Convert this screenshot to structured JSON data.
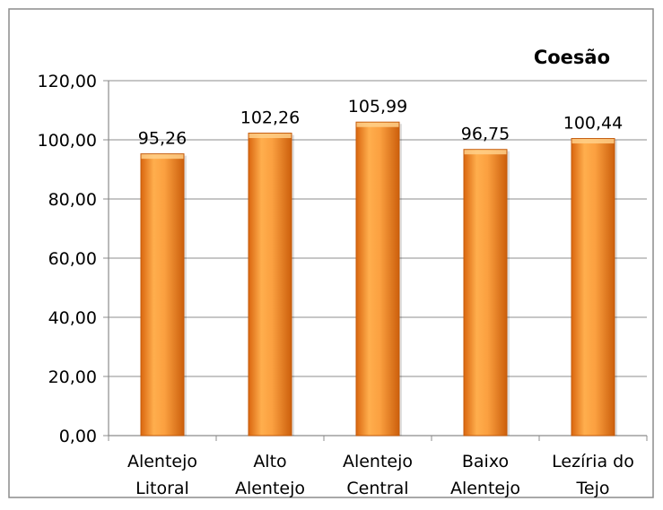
{
  "chart_data": {
    "type": "bar",
    "title": "Coesão",
    "categories": [
      [
        "Alentejo",
        "Litoral"
      ],
      [
        "Alto",
        "Alentejo"
      ],
      [
        "Alentejo",
        "Central"
      ],
      [
        "Baixo",
        "Alentejo"
      ],
      [
        "Lezíria do",
        "Tejo"
      ]
    ],
    "values": [
      95.26,
      102.26,
      105.99,
      96.75,
      100.44
    ],
    "value_labels": [
      "95,26",
      "102,26",
      "105,99",
      "96,75",
      "100,44"
    ],
    "y_ticks": [
      "0,00",
      "20,00",
      "40,00",
      "60,00",
      "80,00",
      "100,00",
      "120,00"
    ],
    "ylim": [
      0,
      120
    ],
    "grid": true,
    "bar_color": "#f7941d",
    "xlabel": "",
    "ylabel": ""
  }
}
